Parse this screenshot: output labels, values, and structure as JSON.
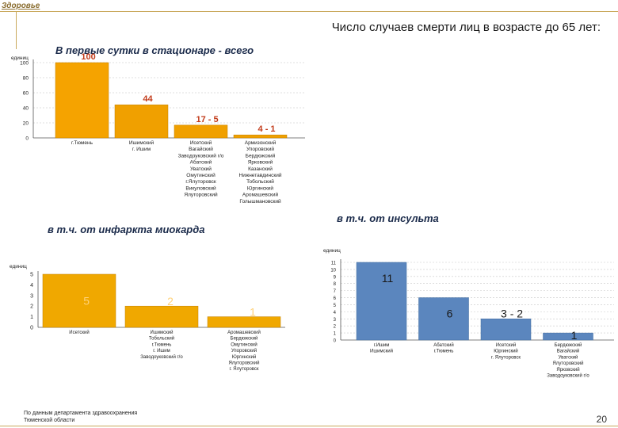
{
  "header": {
    "section_link": "Здоровье",
    "title": "Число случаев смерти лиц в возрасте до 65 лет:"
  },
  "chart_data": [
    {
      "type": "bar",
      "title": "В первые сутки в стационаре - всего",
      "ylabel": "единиц",
      "ylim": [
        0,
        100
      ],
      "yticks": [
        "0",
        "20",
        "40",
        "60",
        "80",
        "100"
      ],
      "categories": [
        "г.Тюмень",
        "Ишимский\nг. Ишим",
        "Исетский\nВагайский\nЗаводоуковский г/о\nАбатский\nУватский\nОмутинский\nг.Ялуторовск\nВикуловский\nЯлуторовский",
        "Армизонский\nУпоровский\nБердюжский\nЯрковский\nКазанский\nНижнетавдинский\nТобольский\nЮргинский\nАромашевский\nГолышмановский"
      ],
      "values": [
        100,
        44,
        17,
        4
      ],
      "value_labels": [
        "100",
        "44",
        "17 - 5",
        "4 - 1"
      ],
      "colors": [
        "#f5a300",
        "#f0a000",
        "#f0a000",
        "#f0a000"
      ],
      "grid": true
    },
    {
      "type": "bar",
      "title": "в т.ч. от инфаркта миокарда",
      "ylabel": "единиц",
      "ylim": [
        0,
        5
      ],
      "yticks": [
        "0",
        "1",
        "2",
        "3",
        "4",
        "5"
      ],
      "categories": [
        "Исетский",
        "Ишимский\nТобольский\nг.Тюмень\nг. Ишим\nЗаводоуковский г/о",
        "Аромашевский\nБердюжский\nОмутинский\nУпоровский\nЮргинский\nЯлуторовский\nг. Ялуторовск"
      ],
      "values": [
        5,
        2,
        1
      ],
      "value_labels": [
        "5",
        "2",
        "1"
      ],
      "colors": [
        "#f0a800",
        "#f0a800",
        "#f0a800"
      ],
      "grid": false
    },
    {
      "type": "bar",
      "title": "в т.ч. от инсульта",
      "ylabel": "единиц",
      "ylim": [
        0,
        11
      ],
      "yticks": [
        "0",
        "1",
        "2",
        "3",
        "4",
        "5",
        "6",
        "7",
        "8",
        "9",
        "10",
        "11"
      ],
      "categories": [
        "г.Ишим\nИшимский",
        "Абатский\nг.Тюмень",
        "Исетский\nЮргинский\nг. Ялуторовск",
        "Бердюжский\nВагайский\nУватский\nЯлуторовский\nЯрковский\nЗаводоуковский г/о"
      ],
      "values": [
        11,
        6,
        3,
        1
      ],
      "value_labels": [
        "11",
        "6",
        "3 - 2",
        "1"
      ],
      "colors": [
        "#5b86be",
        "#5b86be",
        "#5b86be",
        "#5b86be"
      ],
      "grid": true
    }
  ],
  "footer": {
    "source_line1": "По данным департамента здравоохранения",
    "source_line2": "Тюменской области",
    "page_number": "20"
  }
}
